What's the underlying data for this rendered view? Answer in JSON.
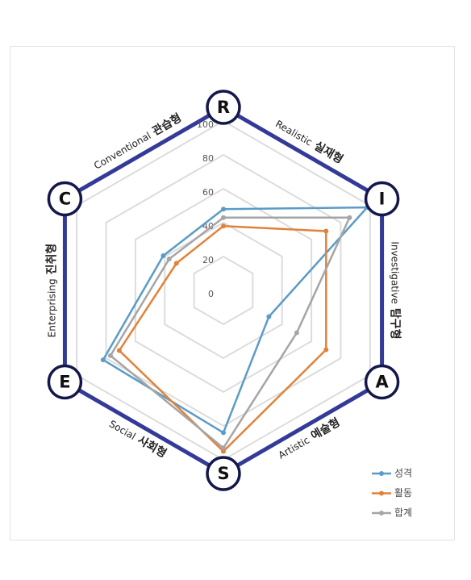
{
  "chart_data": {
    "type": "radar",
    "categories": [
      "R",
      "I",
      "A",
      "S",
      "E",
      "C"
    ],
    "axis_titles": [
      {
        "en": "Realistic",
        "ko": "실재형"
      },
      {
        "en": "Investigative",
        "ko": "탐구형"
      },
      {
        "en": "Artistic",
        "ko": "예술형"
      },
      {
        "en": "Social",
        "ko": "사회형"
      },
      {
        "en": "Enterprising",
        "ko": "진취형"
      },
      {
        "en": "Conventional",
        "ko": "관습형"
      }
    ],
    "rlim": [
      0,
      100
    ],
    "rticks": [
      0,
      20,
      40,
      60,
      80,
      100
    ],
    "grid": true,
    "legend": "lower right",
    "series": [
      {
        "name": "성격",
        "color": "#5b9bc8",
        "values": [
          48,
          98,
          31,
          84,
          82,
          41
        ]
      },
      {
        "name": "활동",
        "color": "#e0833a",
        "values": [
          38,
          70,
          70,
          95,
          71,
          32
        ]
      },
      {
        "name": "합계",
        "color": "#a5a5a5",
        "values": [
          43,
          86,
          50,
          93,
          77,
          37
        ]
      }
    ]
  }
}
